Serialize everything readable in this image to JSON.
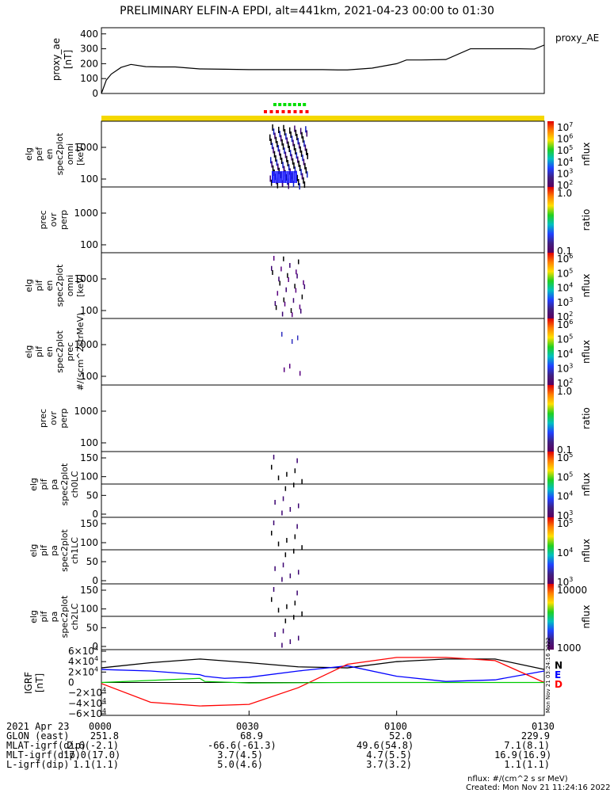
{
  "title": "PRELIMINARY ELFIN-A EPDI, alt=441km, 2021-04-23 00:00 to 01:30",
  "panels": [
    {
      "id": "ae",
      "ylabel": [
        "proxy_ae",
        "[nT]"
      ],
      "yticks": [
        "400",
        "300",
        "200",
        "100",
        "0"
      ],
      "ytick_values": [
        400,
        300,
        200,
        100,
        0
      ],
      "right_label": "proxy_AE"
    },
    {
      "id": "pef",
      "ylabel": [
        "elg",
        "pef",
        "en",
        "spec2plot",
        "omni",
        "[keV]"
      ],
      "yticks": [
        "1000",
        "100"
      ],
      "colorbar": {
        "label": "nflux",
        "ticks": [
          "10^7",
          "10^6",
          "10^5",
          "10^4",
          "10^3",
          "10^2"
        ]
      }
    },
    {
      "id": "pef_ratio",
      "ylabel": [
        "prec",
        "ovr",
        "perp"
      ],
      "yticks": [
        "1000",
        "100"
      ],
      "colorbar": {
        "label": "ratio",
        "ticks": [
          "1.0",
          "0.1"
        ]
      }
    },
    {
      "id": "pif",
      "ylabel": [
        "elg",
        "pif",
        "en",
        "spec2plot",
        "omni",
        "[keV]"
      ],
      "yticks": [
        "1000",
        "100"
      ],
      "colorbar": {
        "label": "nflux",
        "ticks": [
          "10^6",
          "10^5",
          "10^4",
          "10^3",
          "10^2"
        ]
      }
    },
    {
      "id": "pif_prec",
      "ylabel": [
        "elg",
        "pif",
        "en",
        "spec2plot",
        "prec",
        "#/(scm^2strMeV)"
      ],
      "yticks": [
        "1000",
        "100"
      ],
      "colorbar": {
        "label": "nflux",
        "ticks": [
          "10^6",
          "10^5",
          "10^4",
          "10^3",
          "10^2"
        ]
      }
    },
    {
      "id": "pif_ratio",
      "ylabel": [
        "prec",
        "ovr",
        "perp"
      ],
      "yticks": [
        "1000",
        "100"
      ],
      "colorbar": {
        "label": "ratio",
        "ticks": [
          "1.0",
          "0.1"
        ]
      }
    },
    {
      "id": "pa0",
      "ylabel": [
        "elg",
        "pif",
        "pa",
        "spec2plot",
        "ch0LC"
      ],
      "yticks": [
        "150",
        "100",
        "50",
        "0"
      ],
      "colorbar": {
        "label": "nflux",
        "ticks": [
          "10^5",
          "10^5",
          "10^4",
          "10^3"
        ]
      }
    },
    {
      "id": "pa1",
      "ylabel": [
        "elg",
        "pif",
        "pa",
        "spec2plot",
        "ch1LC"
      ],
      "yticks": [
        "150",
        "100",
        "50",
        "0"
      ],
      "colorbar": {
        "label": "nflux",
        "ticks": [
          "10^5",
          "10^4",
          "10^3"
        ]
      }
    },
    {
      "id": "pa2",
      "ylabel": [
        "elg",
        "pif",
        "pa",
        "spec2plot",
        "ch2LC"
      ],
      "yticks": [
        "150",
        "100",
        "50",
        "0"
      ],
      "colorbar": {
        "label": "nflux",
        "ticks": [
          "10000",
          "1000"
        ]
      }
    },
    {
      "id": "igrf",
      "ylabel": [
        "IGRF",
        "[nT]"
      ],
      "yticks": [
        "6×10^4",
        "4×10^4",
        "2×10^4",
        "0",
        "−2×10^4",
        "−4×10^4",
        "−6×10^4"
      ],
      "legend": [
        "N",
        "E",
        "D"
      ],
      "side_text": "Mon Nov 21 03:24:16 2022"
    }
  ],
  "chart_data": {
    "type": "line",
    "series": [
      {
        "name": "proxy_AE",
        "x_min": [
          0,
          1,
          2,
          4,
          6,
          9,
          12,
          15,
          20,
          25,
          30,
          35,
          40,
          45,
          48,
          50,
          55,
          60,
          62,
          65,
          70,
          75,
          80,
          85,
          88,
          90
        ],
        "values": [
          0,
          90,
          130,
          175,
          195,
          180,
          178,
          178,
          165,
          163,
          160,
          160,
          160,
          160,
          158,
          158,
          170,
          200,
          225,
          225,
          228,
          300,
          300,
          300,
          298,
          325
        ]
      },
      {
        "name": "N",
        "x_min": [
          0,
          10,
          20,
          30,
          40,
          50,
          60,
          70,
          80,
          90
        ],
        "values": [
          28000,
          38000,
          45000,
          38000,
          30000,
          28000,
          40000,
          45000,
          45000,
          25000
        ]
      },
      {
        "name": "E",
        "x_min": [
          0,
          10,
          20,
          21,
          25,
          30,
          40,
          50,
          60,
          70,
          80,
          90
        ],
        "values": [
          25000,
          22000,
          15000,
          12000,
          8000,
          10000,
          22000,
          32000,
          12000,
          2000,
          5000,
          22000
        ]
      },
      {
        "name": "D",
        "x_min": [
          0,
          10,
          20,
          30,
          40,
          50,
          60,
          70,
          80,
          90
        ],
        "values": [
          -2000,
          -38000,
          -45000,
          -42000,
          -10000,
          35000,
          48000,
          48000,
          42000,
          0
        ]
      }
    ],
    "xlim_minutes": [
      0,
      90
    ],
    "xticks": [
      "0000",
      "0030",
      "0100",
      "0130"
    ]
  },
  "footer": {
    "date": "2021 Apr 23",
    "rows": [
      {
        "label": "GLON (east)",
        "values": [
          "251.8",
          "68.9",
          "52.0",
          "229.9"
        ]
      },
      {
        "label": "MLAT-igrf(dip)",
        "values": [
          "2.6(-2.1)",
          "-66.6(-61.3)",
          "49.6(54.8)",
          "7.1(8.1)"
        ]
      },
      {
        "label": "MLT-igrf(dip)",
        "values": [
          "17.0(17.0)",
          "3.7(4.5)",
          "4.7(5.5)",
          "16.9(16.9)"
        ]
      },
      {
        "label": "L-igrf(dip)",
        "values": [
          "1.1(1.1)",
          "5.0(4.6)",
          "3.7(3.2)",
          "1.1(1.1)"
        ]
      }
    ],
    "nflux_note": "nflux: #/(cm^2 s sr MeV)",
    "created": "Created: Mon Nov 21 11:24:16 2022"
  },
  "colors": {
    "bar_yellow": "#f5d800",
    "bar_red": "#ff0000",
    "bar_green": "#00dd00",
    "n": "#000000",
    "e": "#0000ff",
    "d": "#ff0000"
  }
}
